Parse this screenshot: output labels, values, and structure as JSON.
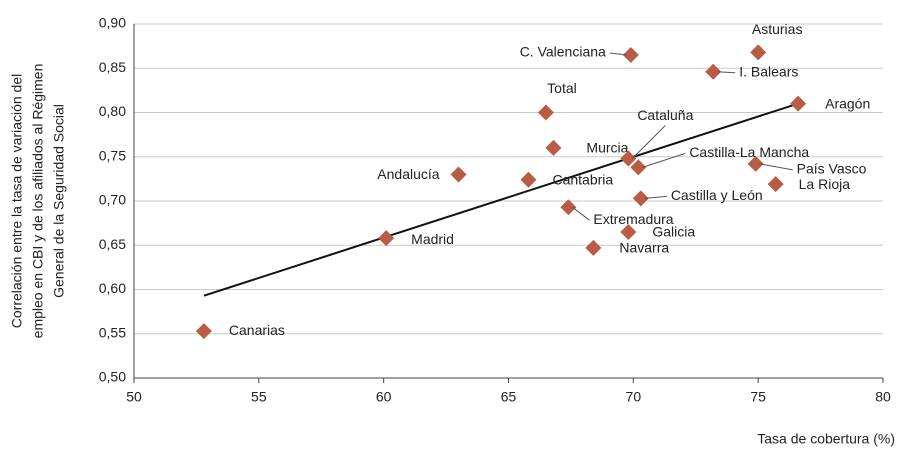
{
  "chart_data": {
    "type": "scatter",
    "ylabel": [
      "Correlación entre la tasa de variación del",
      "empleo en CBI y de los afiliados al Régimen",
      "General de la Seguridad Social"
    ],
    "xlabel": "Tasa de cobertura (%)",
    "xlim": [
      50,
      80
    ],
    "xticks": [
      50,
      55,
      60,
      65,
      70,
      75,
      80
    ],
    "ylim": [
      0.5,
      0.9
    ],
    "yticks": [
      {
        "value": 0.5,
        "label": "0,50"
      },
      {
        "value": 0.55,
        "label": "0,55"
      },
      {
        "value": 0.6,
        "label": "0,60"
      },
      {
        "value": 0.65,
        "label": "0,65"
      },
      {
        "value": 0.7,
        "label": "0,70"
      },
      {
        "value": 0.75,
        "label": "0,75"
      },
      {
        "value": 0.8,
        "label": "0,80"
      },
      {
        "value": 0.85,
        "label": "0,85"
      },
      {
        "value": 0.9,
        "label": "0,90"
      }
    ],
    "grid": true,
    "color": "#b85c45",
    "labels": [
      "Canarias",
      "Madrid",
      "Andalucía",
      "Cantabria",
      "Extremadura",
      "Total",
      "Murcia",
      "Navarra",
      "Galicia",
      "C. Valenciana",
      "Cataluña",
      "Castilla-La Mancha",
      "Castilla y León",
      "I. Balears",
      "Asturias",
      "País Vasco",
      "La Rioja",
      "Aragón"
    ],
    "x": [
      52.8,
      60.1,
      63.0,
      65.8,
      67.4,
      66.5,
      66.8,
      68.4,
      69.8,
      69.9,
      69.8,
      70.2,
      70.3,
      73.2,
      75.0,
      74.9,
      75.7,
      76.6
    ],
    "values": [
      0.553,
      0.658,
      0.73,
      0.724,
      0.693,
      0.8,
      0.76,
      0.647,
      0.665,
      0.865,
      0.748,
      0.738,
      0.703,
      0.846,
      0.868,
      0.742,
      0.719,
      0.81
    ],
    "trendline": {
      "x": [
        52.8,
        76.7
      ],
      "values": [
        0.593,
        0.811
      ],
      "color": "#111111"
    }
  }
}
